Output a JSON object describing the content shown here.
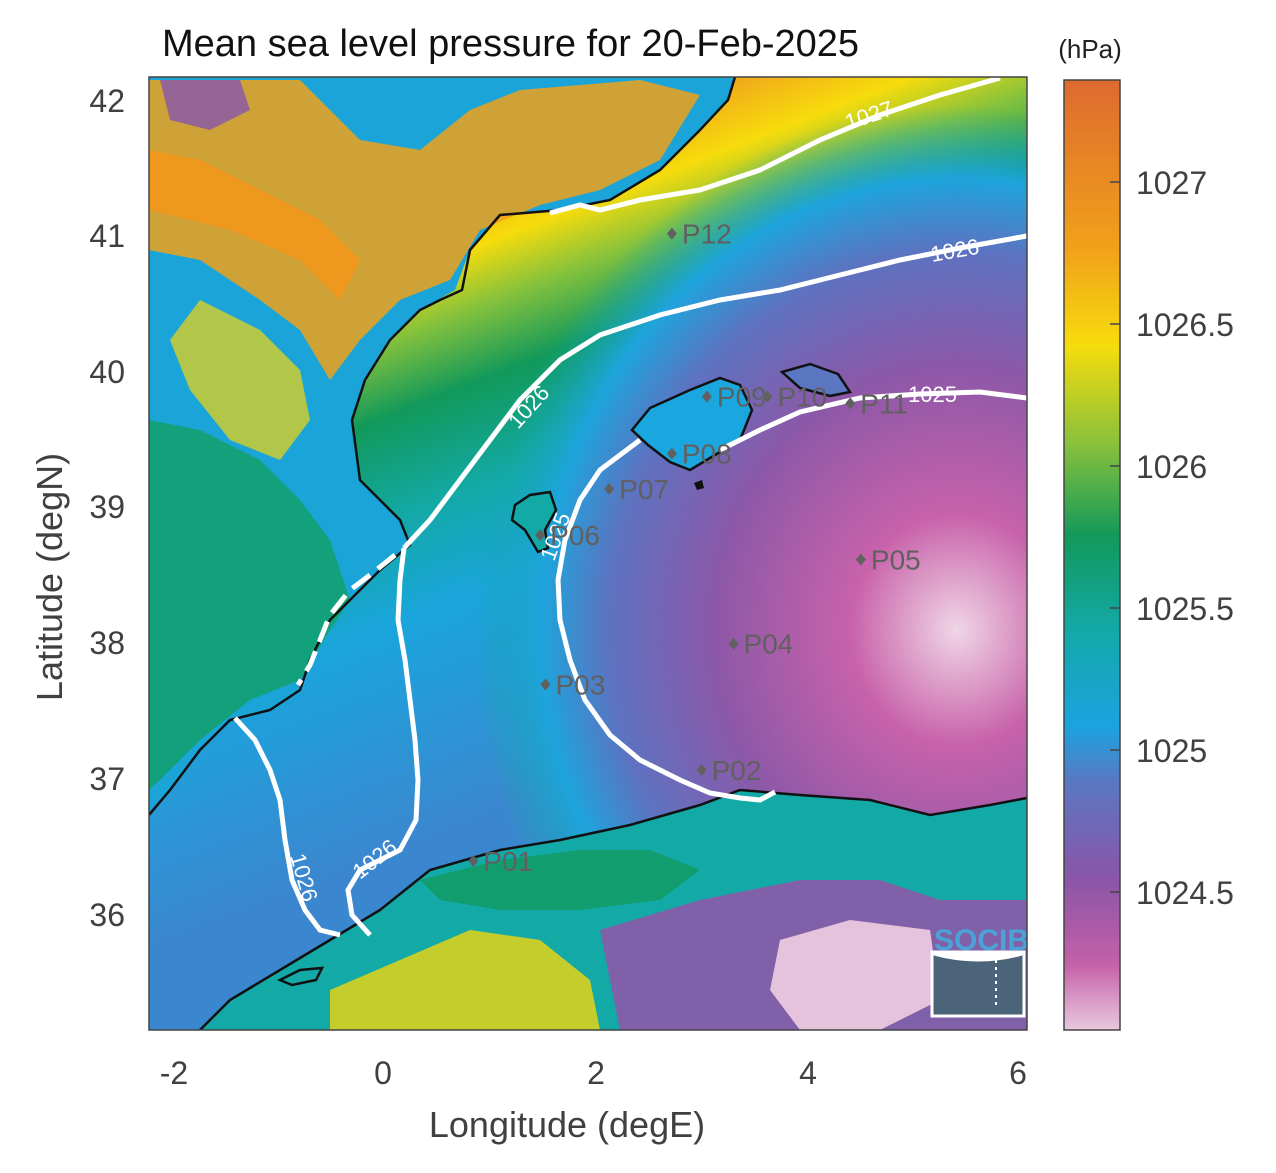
{
  "title": "Mean sea level pressure for 20-Feb-2025",
  "xlabel": "Longitude (degE)",
  "ylabel": "Latitude (degN)",
  "x_ticks": [
    "-2",
    "0",
    "2",
    "4",
    "6"
  ],
  "y_ticks": [
    "42",
    "41",
    "40",
    "39",
    "38",
    "37",
    "36"
  ],
  "colorbar": {
    "unit": "(hPa)",
    "ticks": [
      "1027",
      "1026.5",
      "1026",
      "1025.5",
      "1025",
      "1024.5"
    ]
  },
  "isobars": {
    "labels": [
      "1027",
      "1026",
      "1026",
      "1025",
      "1025",
      "1026",
      "1026"
    ]
  },
  "stations": [
    {
      "id": "P01",
      "lon": 0.85,
      "lat": 36.48
    },
    {
      "id": "P02",
      "lon": 3.0,
      "lat": 37.15
    },
    {
      "id": "P03",
      "lon": 1.53,
      "lat": 37.78
    },
    {
      "id": "P04",
      "lon": 3.3,
      "lat": 38.08
    },
    {
      "id": "P05",
      "lon": 4.5,
      "lat": 38.7
    },
    {
      "id": "P06",
      "lon": 1.48,
      "lat": 38.88
    },
    {
      "id": "P07",
      "lon": 2.13,
      "lat": 39.22
    },
    {
      "id": "P08",
      "lon": 2.72,
      "lat": 39.48
    },
    {
      "id": "P09",
      "lon": 3.05,
      "lat": 39.9
    },
    {
      "id": "P10",
      "lon": 3.62,
      "lat": 39.9
    },
    {
      "id": "P11",
      "lon": 4.4,
      "lat": 39.85
    },
    {
      "id": "P12",
      "lon": 2.72,
      "lat": 41.1
    }
  ],
  "logo": "SOCIB",
  "colors": {
    "high": "#e06a2c",
    "mid_high": "#f5d50a",
    "mid": "#0f9b5a",
    "mid_low": "#1aa7df",
    "low": "#8a5aa6",
    "lowest": "#e6c3dd",
    "isobar": "#ffffff",
    "coast": "#111111"
  }
}
